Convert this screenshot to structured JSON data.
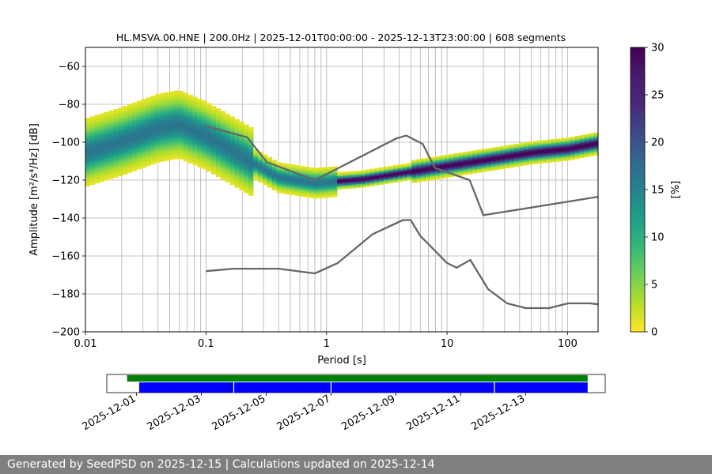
{
  "chart_data": {
    "type": "heatmap",
    "title": "HL.MSVA.00.HNE | 200.0Hz | 2025-12-01T00:00:00 - 2025-12-13T23:00:00 | 608 segments",
    "xlabel": "Period [s]",
    "ylabel": "Amplitude [m²/s⁴/Hz] [dB]",
    "xscale": "log",
    "xlim": [
      0.01,
      179
    ],
    "ylim": [
      -200,
      -50
    ],
    "x_ticks": [
      0.01,
      0.1,
      1,
      10,
      100
    ],
    "x_tick_labels": [
      "0.01",
      "0.1",
      "1",
      "10",
      "100"
    ],
    "y_ticks": [
      -200,
      -180,
      -160,
      -140,
      -120,
      -100,
      -80,
      -60
    ],
    "grid": true,
    "colorbar": {
      "label": "[%]",
      "range": [
        0,
        30
      ],
      "ticks": [
        0,
        5,
        10,
        15,
        20,
        25,
        30
      ],
      "colormap": "viridis_r"
    },
    "high_noise_model": [
      [
        0.1,
        -91.5
      ],
      [
        0.22,
        -97.4
      ],
      [
        0.32,
        -110.5
      ],
      [
        0.8,
        -120
      ],
      [
        3.8,
        -98
      ],
      [
        4.6,
        -96.5
      ],
      [
        6.3,
        -101
      ],
      [
        7.9,
        -113.5
      ],
      [
        15.4,
        -120
      ],
      [
        20,
        -138.5
      ],
      [
        179,
        -128.8
      ]
    ],
    "low_noise_model": [
      [
        0.1,
        -168
      ],
      [
        0.17,
        -166.7
      ],
      [
        0.4,
        -166.7
      ],
      [
        0.8,
        -169.2
      ],
      [
        1.24,
        -163.7
      ],
      [
        2.4,
        -148.6
      ],
      [
        4.3,
        -141.1
      ],
      [
        5.0,
        -141.1
      ],
      [
        6.0,
        -149.4
      ],
      [
        10,
        -163.7
      ],
      [
        12,
        -166.2
      ],
      [
        15.6,
        -162.1
      ],
      [
        21.9,
        -177.5
      ],
      [
        31.6,
        -185
      ],
      [
        45,
        -187.5
      ],
      [
        70,
        -187.5
      ],
      [
        101,
        -185
      ],
      [
        154,
        -185
      ],
      [
        179,
        -185.5
      ]
    ],
    "mode_curve": [
      [
        0.01,
        -106
      ],
      [
        0.02,
        -100
      ],
      [
        0.04,
        -93
      ],
      [
        0.06,
        -91
      ],
      [
        0.1,
        -97
      ],
      [
        0.2,
        -108
      ],
      [
        0.4,
        -119
      ],
      [
        0.8,
        -122
      ],
      [
        2,
        -120
      ],
      [
        5,
        -116
      ],
      [
        10,
        -113
      ],
      [
        20,
        -110
      ],
      [
        50,
        -106
      ],
      [
        100,
        -104
      ],
      [
        179,
        -101
      ]
    ],
    "data_coverage": {
      "date_ticks": [
        "2025-12-01",
        "2025-12-03",
        "2025-12-05",
        "2025-12-07",
        "2025-12-09",
        "2025-12-11",
        "2025-12-13"
      ],
      "range": [
        "2025-11-30T02:00",
        "2025-12-15T11:00"
      ],
      "green_span": [
        "2025-11-30T17:00",
        "2025-12-14T22:00"
      ],
      "blue_span": [
        "2025-12-01T02:00",
        "2025-12-14T22:00"
      ],
      "gaps": [
        "2025-12-04T00:00",
        "2025-12-07T00:00",
        "2025-12-12T01:00"
      ]
    }
  },
  "colors": {
    "model_lines": "#666666",
    "coverage_green": "#008000",
    "coverage_blue": "#0000ff",
    "footer_bg": "#7f7f7f"
  },
  "footer": {
    "text": "Generated by SeedPSD on 2025-12-15 | Calculations updated on 2025-12-14"
  }
}
